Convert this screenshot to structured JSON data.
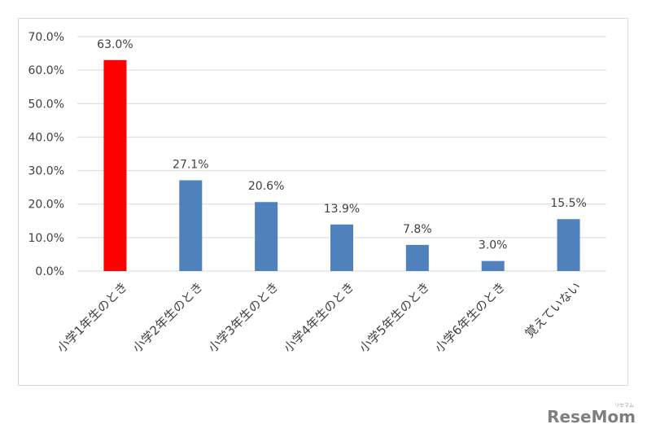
{
  "chart_data": {
    "type": "bar",
    "categories": [
      "小学1年生のとき",
      "小学2年生のとき",
      "小学3年生のとき",
      "小学4年生のとき",
      "小学5年生のとき",
      "小学6年生のとき",
      "覚えていない"
    ],
    "values": [
      63.0,
      27.1,
      20.6,
      13.9,
      7.8,
      3.0,
      15.5
    ],
    "value_labels": [
      "63.0%",
      "27.1%",
      "20.6%",
      "13.9%",
      "7.8%",
      "3.0%",
      "15.5%"
    ],
    "y_ticks": [
      "0.0%",
      "10.0%",
      "20.0%",
      "30.0%",
      "40.0%",
      "50.0%",
      "60.0%",
      "70.0%"
    ],
    "ylim": [
      0,
      70
    ],
    "grid": true,
    "colors": {
      "highlight": "#ff0000",
      "default": "#4f81bd",
      "grid": "#d9d9d9",
      "text": "#404040"
    },
    "highlight_index": 0
  },
  "watermark": {
    "text": "ReseMom",
    "sub": "リセマム"
  }
}
